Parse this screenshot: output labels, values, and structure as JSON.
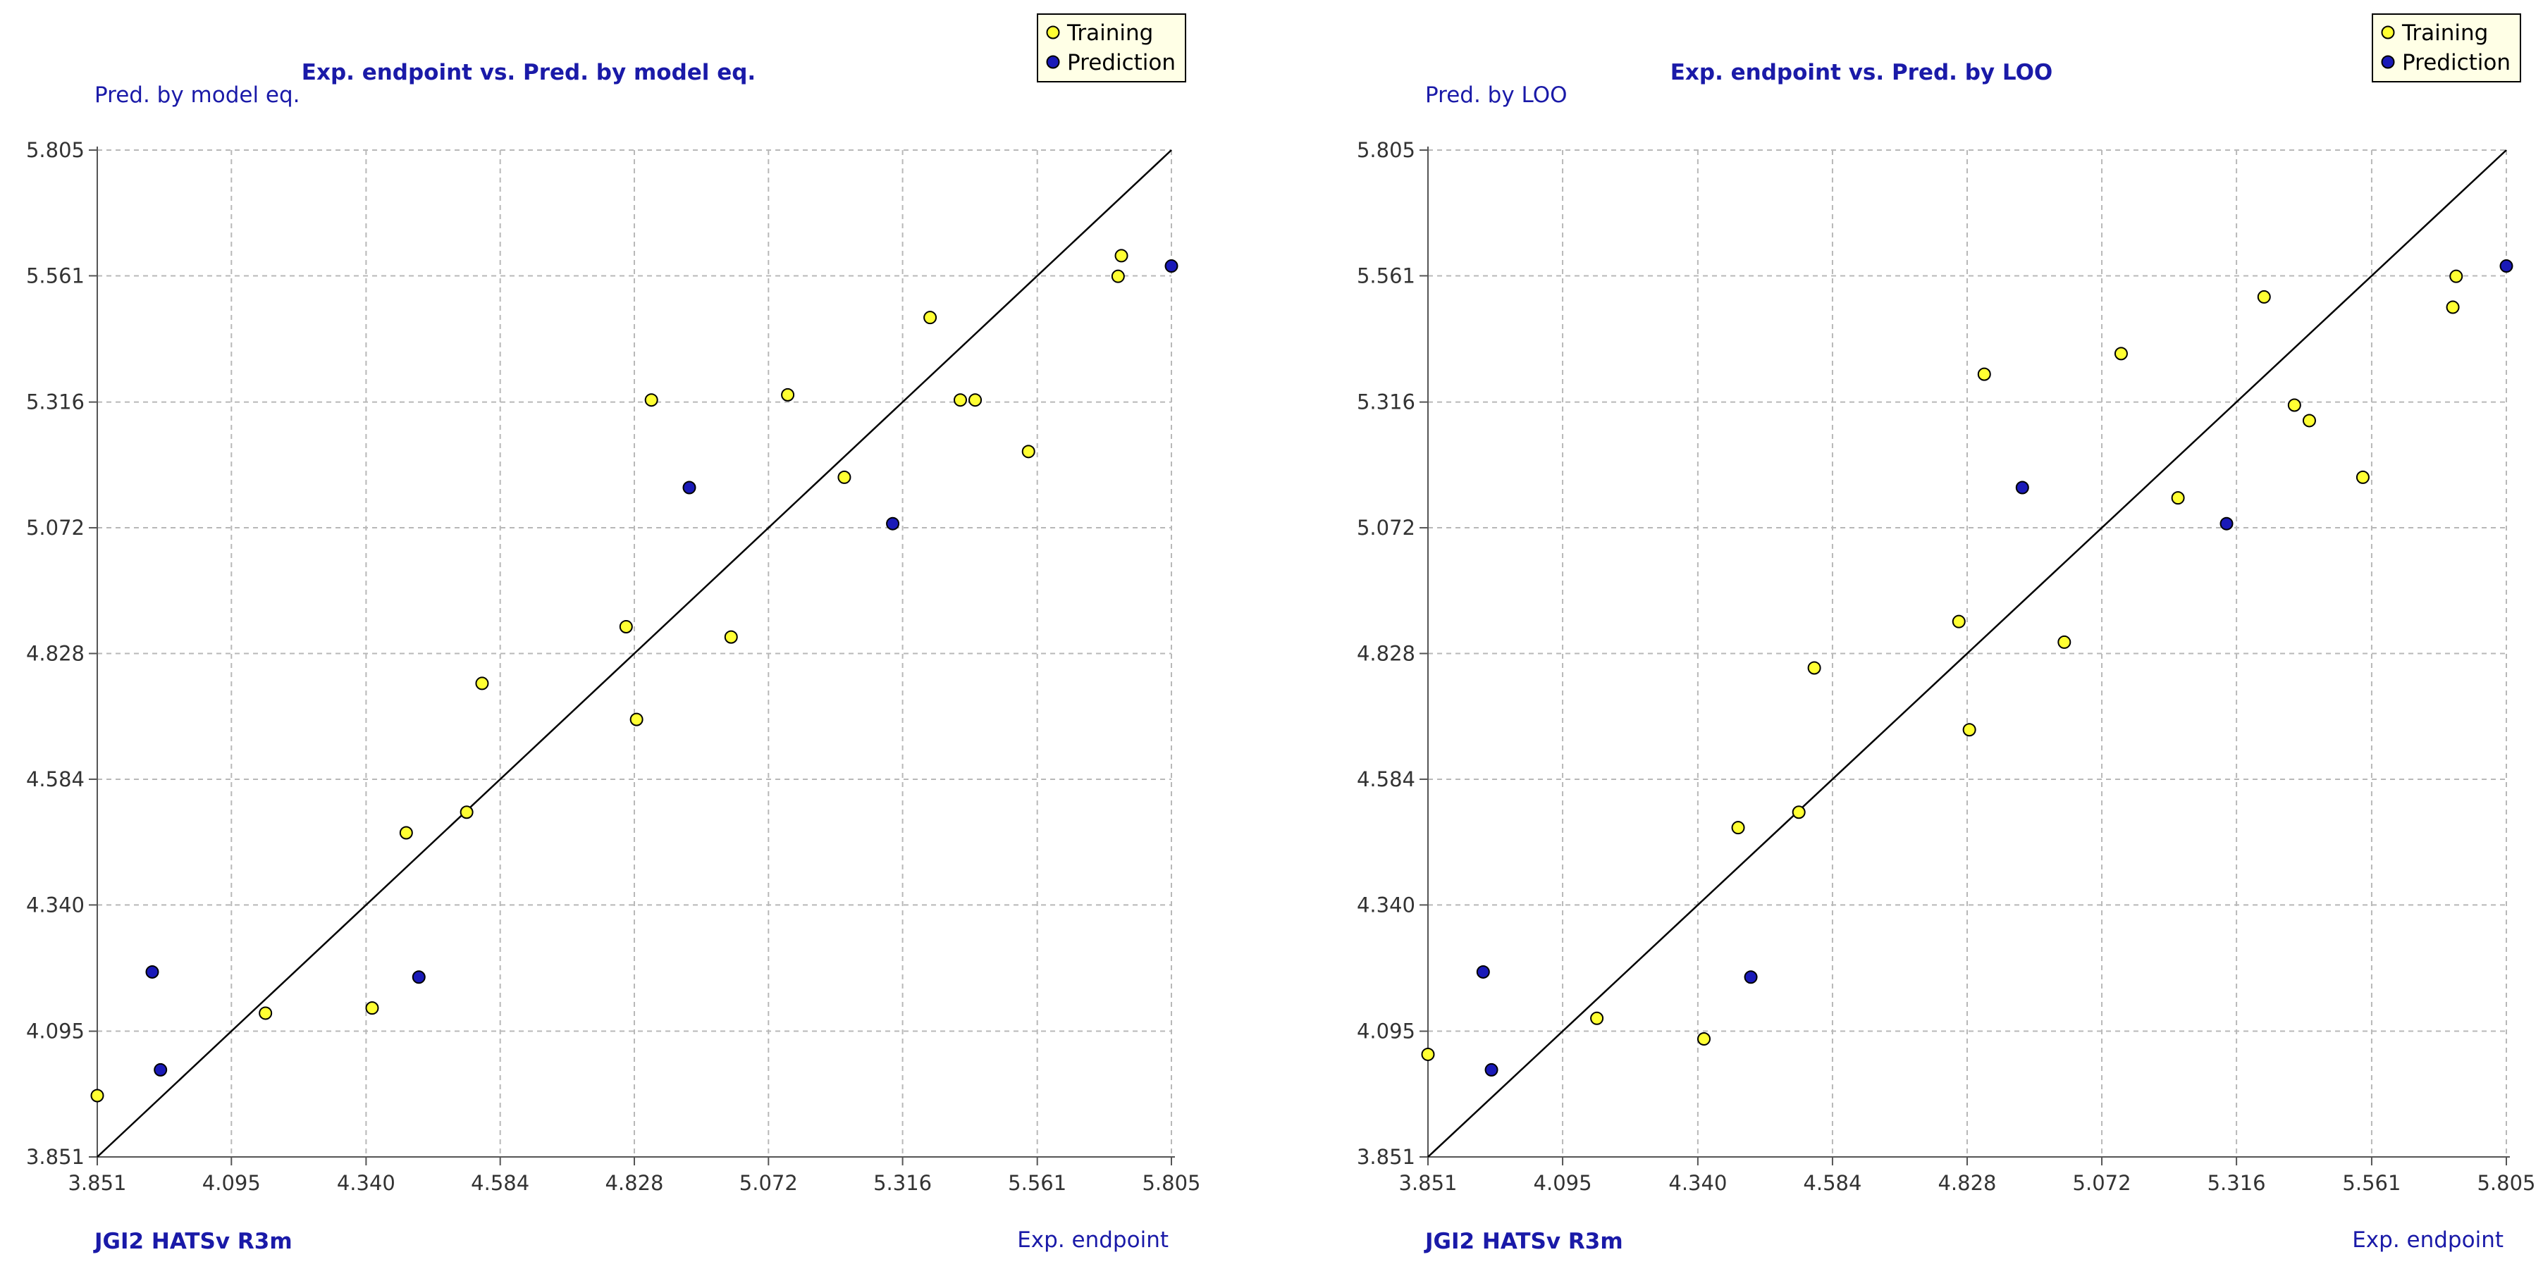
{
  "chart_data": [
    {
      "type": "scatter",
      "title": "Exp. endpoint vs. Pred. by model eq.",
      "xlabel": "Exp. endpoint",
      "ylabel": "Pred. by model eq.",
      "footer": "JGI2  HATSv  R3m",
      "ticks": [
        "3.851",
        "4.095",
        "4.340",
        "4.584",
        "4.828",
        "5.072",
        "5.316",
        "5.561",
        "5.805"
      ],
      "xlim": [
        3.851,
        5.805
      ],
      "ylim": [
        3.851,
        5.805
      ],
      "grid": true,
      "legend_position": "top-right",
      "colors": {
        "Training": "#ffff33",
        "Prediction": "#1a1ab8",
        "line": "#000000"
      },
      "series": [
        {
          "name": "Training",
          "points": [
            [
              3.851,
              3.97
            ],
            [
              4.157,
              4.13
            ],
            [
              4.351,
              4.14
            ],
            [
              4.413,
              4.48
            ],
            [
              4.523,
              4.52
            ],
            [
              4.551,
              4.77
            ],
            [
              4.813,
              4.88
            ],
            [
              4.832,
              4.7
            ],
            [
              4.859,
              5.32
            ],
            [
              5.004,
              4.86
            ],
            [
              5.107,
              5.33
            ],
            [
              5.21,
              5.17
            ],
            [
              5.366,
              5.48
            ],
            [
              5.421,
              5.32
            ],
            [
              5.448,
              5.32
            ],
            [
              5.545,
              5.22
            ],
            [
              5.708,
              5.56
            ],
            [
              5.714,
              5.6
            ]
          ]
        },
        {
          "name": "Prediction",
          "points": [
            [
              3.951,
              4.21
            ],
            [
              3.966,
              4.02
            ],
            [
              4.436,
              4.2
            ],
            [
              4.928,
              5.15
            ],
            [
              5.298,
              5.08
            ],
            [
              5.805,
              5.58
            ]
          ]
        }
      ]
    },
    {
      "type": "scatter",
      "title": "Exp. endpoint vs. Pred. by LOO",
      "xlabel": "Exp. endpoint",
      "ylabel": "Pred. by LOO",
      "footer": "JGI2  HATSv  R3m",
      "ticks": [
        "3.851",
        "4.095",
        "4.340",
        "4.584",
        "4.828",
        "5.072",
        "5.316",
        "5.561",
        "5.805"
      ],
      "xlim": [
        3.851,
        5.805
      ],
      "ylim": [
        3.851,
        5.805
      ],
      "grid": true,
      "legend_position": "top-right",
      "colors": {
        "Training": "#ffff33",
        "Prediction": "#1a1ab8",
        "line": "#000000"
      },
      "series": [
        {
          "name": "Training",
          "points": [
            [
              3.851,
              4.05
            ],
            [
              4.157,
              4.12
            ],
            [
              4.351,
              4.08
            ],
            [
              4.413,
              4.49
            ],
            [
              4.523,
              4.52
            ],
            [
              4.551,
              4.8
            ],
            [
              4.813,
              4.89
            ],
            [
              4.832,
              4.68
            ],
            [
              4.859,
              5.37
            ],
            [
              5.004,
              4.85
            ],
            [
              5.107,
              5.41
            ],
            [
              5.21,
              5.13
            ],
            [
              5.366,
              5.52
            ],
            [
              5.421,
              5.31
            ],
            [
              5.448,
              5.28
            ],
            [
              5.545,
              5.17
            ],
            [
              5.708,
              5.5
            ],
            [
              5.714,
              5.56
            ]
          ]
        },
        {
          "name": "Prediction",
          "points": [
            [
              3.951,
              4.21
            ],
            [
              3.966,
              4.02
            ],
            [
              4.436,
              4.2
            ],
            [
              4.928,
              5.15
            ],
            [
              5.298,
              5.08
            ],
            [
              5.805,
              5.58
            ]
          ]
        }
      ]
    }
  ]
}
